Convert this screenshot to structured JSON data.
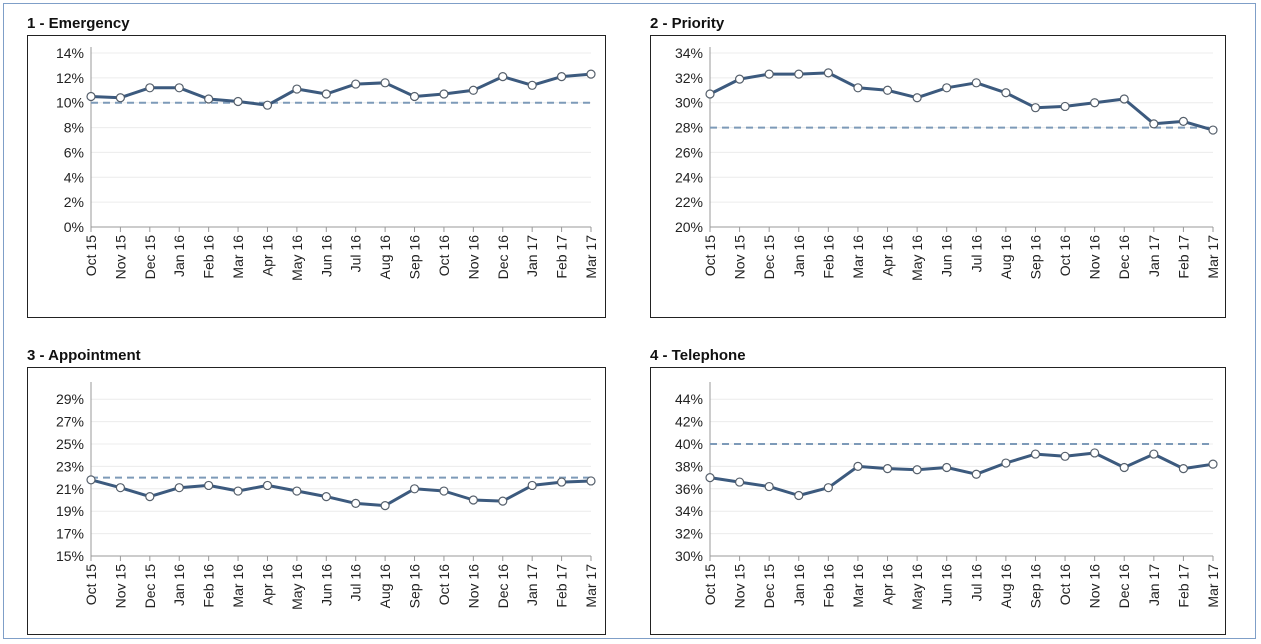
{
  "chart_data": [
    {
      "type": "line",
      "title": "1 - Emergency",
      "categories": [
        "Oct 15",
        "Nov 15",
        "Dec 15",
        "Jan 16",
        "Feb 16",
        "Mar 16",
        "Apr 16",
        "May 16",
        "Jun 16",
        "Jul 16",
        "Aug 16",
        "Sep 16",
        "Oct 16",
        "Nov 16",
        "Dec 16",
        "Jan 17",
        "Feb 17",
        "Mar 17"
      ],
      "series": [
        {
          "values": [
            10.5,
            10.4,
            11.2,
            11.2,
            10.3,
            10.1,
            9.8,
            11.1,
            10.7,
            11.5,
            11.6,
            10.5,
            10.7,
            11.0,
            12.1,
            11.4,
            12.1,
            12.3
          ]
        }
      ],
      "target": 10,
      "ylim": [
        0,
        14
      ],
      "yticks": [
        0,
        2,
        4,
        6,
        8,
        10,
        12,
        14
      ],
      "ytick_labels": [
        "0%",
        "2%",
        "4%",
        "6%",
        "8%",
        "10%",
        "12%",
        "14%"
      ],
      "grid": true,
      "legend": "none"
    },
    {
      "type": "line",
      "title": "2 - Priority",
      "categories": [
        "Oct 15",
        "Nov 15",
        "Dec 15",
        "Jan 16",
        "Feb 16",
        "Mar 16",
        "Apr 16",
        "May 16",
        "Jun 16",
        "Jul 16",
        "Aug 16",
        "Sep 16",
        "Oct 16",
        "Nov 16",
        "Dec 16",
        "Jan 17",
        "Feb 17",
        "Mar 17"
      ],
      "series": [
        {
          "values": [
            30.7,
            31.9,
            32.3,
            32.3,
            32.4,
            31.2,
            31.0,
            30.4,
            31.2,
            31.6,
            30.8,
            29.6,
            29.7,
            30.0,
            30.3,
            28.3,
            28.5,
            27.8
          ]
        }
      ],
      "target": 28,
      "ylim": [
        20,
        34
      ],
      "yticks": [
        20,
        22,
        24,
        26,
        28,
        30,
        32,
        34
      ],
      "ytick_labels": [
        "20%",
        "22%",
        "24%",
        "26%",
        "28%",
        "30%",
        "32%",
        "34%"
      ],
      "grid": true,
      "legend": "none"
    },
    {
      "type": "line",
      "title": "3 - Appointment",
      "categories": [
        "Oct 15",
        "Nov 15",
        "Dec 15",
        "Jan 16",
        "Feb 16",
        "Mar 16",
        "Apr 16",
        "May 16",
        "Jun 16",
        "Jul 16",
        "Aug 16",
        "Sep 16",
        "Oct 16",
        "Nov 16",
        "Dec 16",
        "Jan 17",
        "Feb 17",
        "Mar 17"
      ],
      "series": [
        {
          "values": [
            21.8,
            21.1,
            20.3,
            21.1,
            21.3,
            20.8,
            21.3,
            20.8,
            20.3,
            19.7,
            19.5,
            21.0,
            20.8,
            20.0,
            19.9,
            21.3,
            21.6,
            21.7
          ]
        }
      ],
      "target": 22,
      "ylim": [
        15,
        30
      ],
      "yticks": [
        15,
        17,
        19,
        21,
        23,
        25,
        27,
        29
      ],
      "ytick_labels": [
        "15%",
        "17%",
        "19%",
        "21%",
        "23%",
        "25%",
        "27%",
        "29%"
      ],
      "grid": true,
      "legend": "none"
    },
    {
      "type": "line",
      "title": "4 - Telephone",
      "categories": [
        "Oct 15",
        "Nov 15",
        "Dec 15",
        "Jan 16",
        "Feb 16",
        "Mar 16",
        "Apr 16",
        "May 16",
        "Jun 16",
        "Jul 16",
        "Aug 16",
        "Sep 16",
        "Oct 16",
        "Nov 16",
        "Dec 16",
        "Jan 17",
        "Feb 17",
        "Mar 17"
      ],
      "series": [
        {
          "values": [
            37.0,
            36.6,
            36.2,
            35.4,
            36.1,
            38.0,
            37.8,
            37.7,
            37.9,
            37.3,
            38.3,
            39.1,
            38.9,
            39.2,
            37.9,
            39.1,
            37.8,
            38.2
          ]
        }
      ],
      "target": 40,
      "ylim": [
        30,
        45
      ],
      "yticks": [
        30,
        32,
        34,
        36,
        38,
        40,
        42,
        44
      ],
      "ytick_labels": [
        "30%",
        "32%",
        "34%",
        "36%",
        "38%",
        "40%",
        "42%",
        "44%"
      ],
      "grid": true,
      "legend": "none"
    }
  ],
  "colors": {
    "line": "#3c5a7e",
    "target": "#7d9ab8",
    "marker_fill": "#ffffff",
    "grid": "#ececec",
    "axis": "#999999"
  }
}
